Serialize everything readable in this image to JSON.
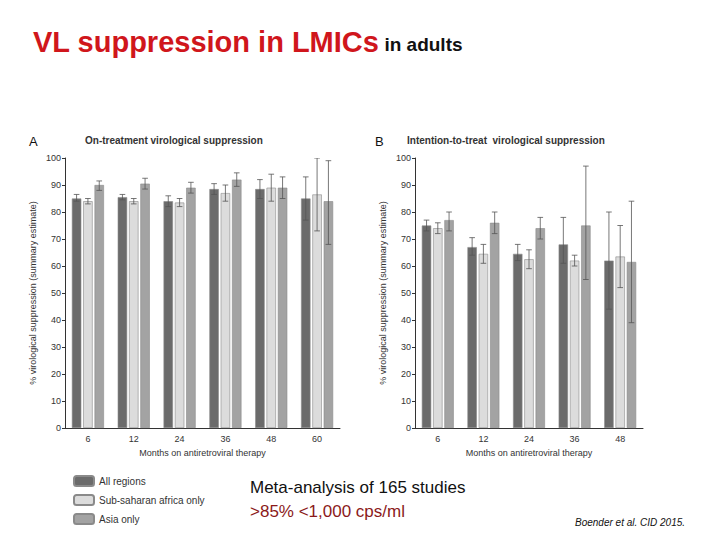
{
  "slide": {
    "title": "VL suppression in LMICs",
    "title_suffix": "in adults",
    "notes": [
      "Meta-analysis of 165 studies",
      ">85% <1,000 cps/ml"
    ],
    "source": "Boender et al. CID 2015."
  },
  "chart_data": [
    {
      "type": "bar",
      "panel": "A",
      "title": "On-treatment virological suppression",
      "x_label": "Months on antiretroviral therapy",
      "y_label": "% virological suppression (summary estimate)",
      "categories": [
        "6",
        "12",
        "24",
        "36",
        "48",
        "60"
      ],
      "ylim": [
        0,
        100
      ],
      "yticks": [
        0,
        10,
        20,
        30,
        40,
        50,
        60,
        70,
        80,
        90,
        100
      ],
      "grid": false,
      "legend": "bottom-left",
      "series": [
        {
          "name": "All regions",
          "color": "#6b6b6b",
          "values": [
            85,
            85.5,
            84,
            88.5,
            88.5,
            85
          ],
          "ci": [
            [
              84,
              86.5
            ],
            [
              84.5,
              86.5
            ],
            [
              82,
              86
            ],
            [
              86.5,
              90.5
            ],
            [
              85,
              92
            ],
            [
              77,
              93
            ]
          ]
        },
        {
          "name": "Sub-saharan africa only",
          "color": "#dcdcdc",
          "values": [
            84,
            84,
            83.5,
            87,
            89,
            86.5
          ],
          "ci": [
            [
              83,
              85
            ],
            [
              83,
              85
            ],
            [
              82,
              85
            ],
            [
              84,
              90
            ],
            [
              84,
              94
            ],
            [
              73,
              100
            ]
          ]
        },
        {
          "name": "Asia only",
          "color": "#a3a3a3",
          "values": [
            90,
            90.5,
            89,
            92,
            89,
            84
          ],
          "ci": [
            [
              88,
              91.5
            ],
            [
              88.5,
              92.5
            ],
            [
              87,
              91
            ],
            [
              89.5,
              94.5
            ],
            [
              85,
              93
            ],
            [
              68,
              99
            ]
          ]
        }
      ]
    },
    {
      "type": "bar",
      "panel": "B",
      "title": "Intention-to-treat  virological suppression",
      "x_label": "Months on antiretroviral therapy",
      "y_label": "% virological suppression (summary estimate)",
      "categories": [
        "6",
        "12",
        "24",
        "36",
        "48"
      ],
      "ylim": [
        0,
        100
      ],
      "yticks": [
        0,
        10,
        20,
        30,
        40,
        50,
        60,
        70,
        80,
        90,
        100
      ],
      "grid": false,
      "series": [
        {
          "name": "All regions",
          "color": "#6b6b6b",
          "values": [
            75,
            67,
            64.5,
            68,
            62
          ],
          "ci": [
            [
              73,
              77
            ],
            [
              64,
              70.5
            ],
            [
              62,
              68
            ],
            [
              61,
              78
            ],
            [
              44,
              80
            ]
          ]
        },
        {
          "name": "Sub-saharan africa only",
          "color": "#dcdcdc",
          "values": [
            74,
            64.5,
            62.5,
            62,
            63.5
          ],
          "ci": [
            [
              72,
              76
            ],
            [
              61,
              68
            ],
            [
              59,
              66
            ],
            [
              60,
              64
            ],
            [
              52,
              75
            ]
          ]
        },
        {
          "name": "Asia only",
          "color": "#a3a3a3",
          "values": [
            77,
            76,
            74,
            75,
            61.5
          ],
          "ci": [
            [
              73,
              80
            ],
            [
              72,
              80
            ],
            [
              70,
              78
            ],
            [
              55,
              97
            ],
            [
              39,
              84
            ]
          ]
        }
      ]
    }
  ]
}
